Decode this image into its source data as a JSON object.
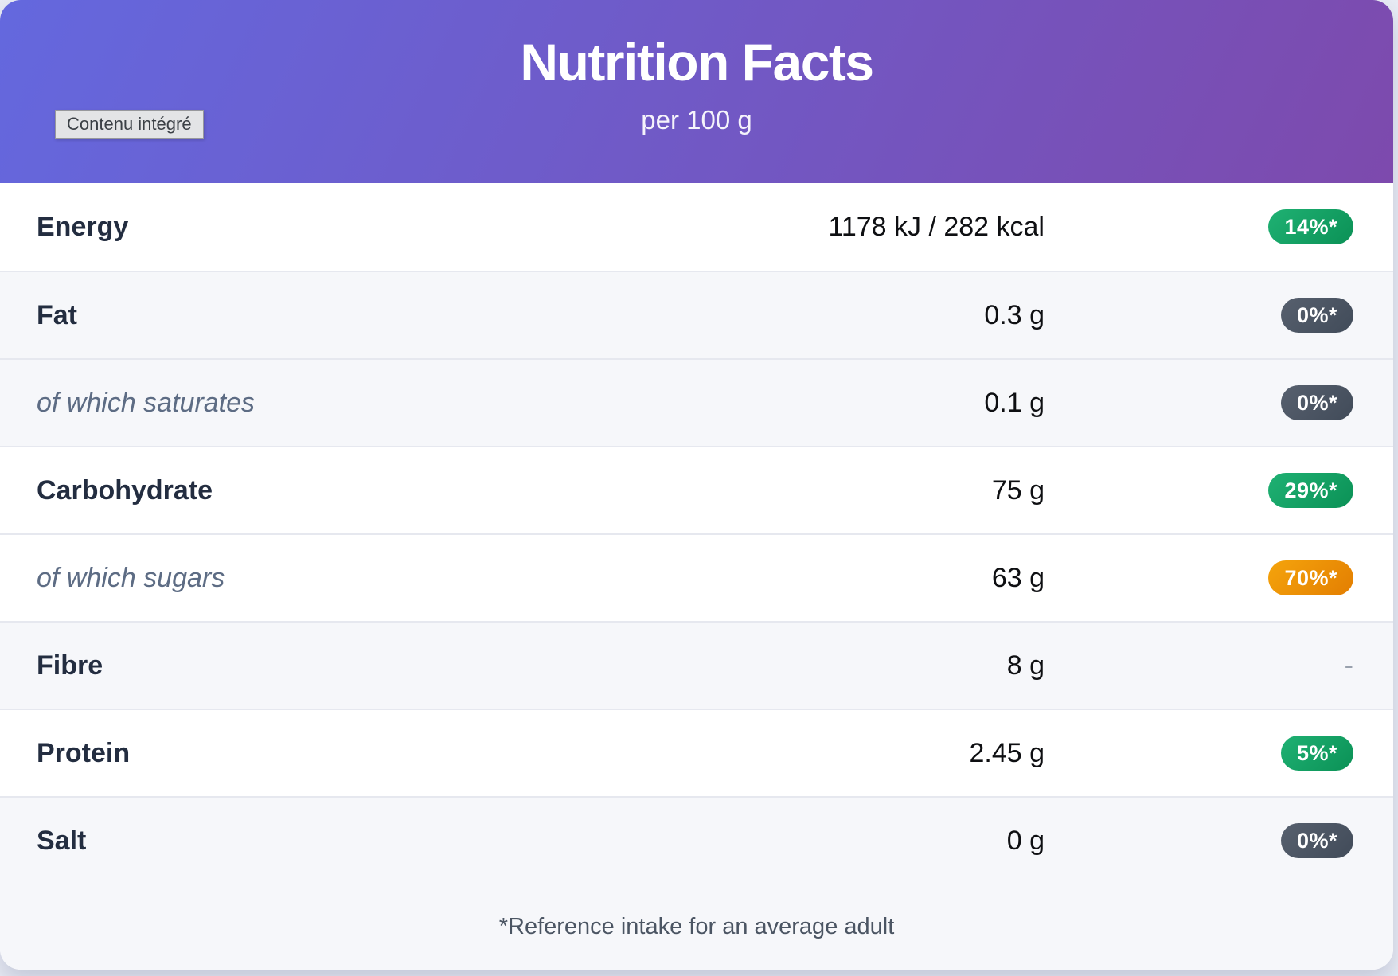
{
  "tooltip": {
    "text": "Contenu intégré"
  },
  "header": {
    "title": "Nutrition Facts",
    "subtitle": "per 100 g"
  },
  "table": {
    "rows": [
      {
        "label": "Energy",
        "sub": false,
        "value": "1178 kJ / 282 kcal",
        "badge_text": "14%*",
        "badge_color": "green",
        "shaded": false
      },
      {
        "label": "Fat",
        "sub": false,
        "value": "0.3 g",
        "badge_text": "0%*",
        "badge_color": "gray",
        "shaded": true
      },
      {
        "label": "of which saturates",
        "sub": true,
        "value": "0.1 g",
        "badge_text": "0%*",
        "badge_color": "gray",
        "shaded": true
      },
      {
        "label": "Carbohydrate",
        "sub": false,
        "value": "75 g",
        "badge_text": "29%*",
        "badge_color": "green",
        "shaded": false
      },
      {
        "label": "of which sugars",
        "sub": true,
        "value": "63 g",
        "badge_text": "70%*",
        "badge_color": "orange",
        "shaded": false
      },
      {
        "label": "Fibre",
        "sub": false,
        "value": "8 g",
        "badge_text": "-",
        "badge_color": "none",
        "shaded": true
      },
      {
        "label": "Protein",
        "sub": false,
        "value": "2.45 g",
        "badge_text": "5%*",
        "badge_color": "green",
        "shaded": false
      },
      {
        "label": "Salt",
        "sub": false,
        "value": "0 g",
        "badge_text": "0%*",
        "badge_color": "gray",
        "shaded": true
      }
    ]
  },
  "footer": {
    "note": "*Reference intake for an average adult"
  },
  "colors": {
    "header_gradient_from": "#6468de",
    "header_gradient_to": "#7d4aad",
    "badge_green_from": "#1fb173",
    "badge_green_to": "#0b9156",
    "badge_gray_from": "#57606e",
    "badge_gray_to": "#414b59",
    "badge_orange_from": "#f5a40c",
    "badge_orange_to": "#e37e01",
    "dash": "#99a1ad"
  }
}
